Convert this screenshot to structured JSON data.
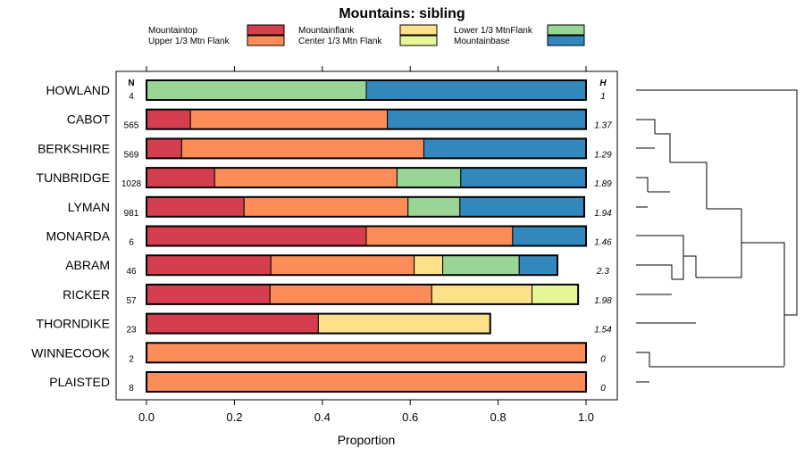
{
  "chart_data": {
    "type": "bar",
    "orientation": "horizontal",
    "stacked": true,
    "title": "Mountains: sibling",
    "xlabel": "Proportion",
    "ylabel": "",
    "xlim": [
      0,
      1
    ],
    "x_ticks": [
      "0.0",
      "0.2",
      "0.4",
      "0.6",
      "0.8",
      "1.0"
    ],
    "n_header": "N",
    "h_header": "H",
    "legend_position": "top",
    "categories": [
      "HOWLAND",
      "CABOT",
      "BERKSHIRE",
      "TUNBRIDGE",
      "LYMAN",
      "MONARDA",
      "ABRAM",
      "RICKER",
      "THORNDIKE",
      "WINNECOOK",
      "PLAISTED"
    ],
    "n_values": [
      "4",
      "565",
      "569",
      "1028",
      "981",
      "6",
      "46",
      "57",
      "23",
      "2",
      "8"
    ],
    "h_values": [
      "1",
      "1.37",
      "1.29",
      "1.89",
      "1.94",
      "1.46",
      "2.3",
      "1.98",
      "1.54",
      "0",
      "0"
    ],
    "series": [
      {
        "name": "Mountaintop",
        "color": "#d53e4f",
        "values": [
          0,
          0.1,
          0.08,
          0.155,
          0.222,
          0.5,
          0.283,
          0.281,
          0.391,
          0,
          0
        ]
      },
      {
        "name": "Upper 1/3 Mtn Flank",
        "color": "#fc8d59",
        "values": [
          0,
          0.448,
          0.551,
          0.415,
          0.373,
          0.333,
          0.326,
          0.368,
          0,
          1,
          1
        ]
      },
      {
        "name": "Mountainflank",
        "color": "#fee08b",
        "values": [
          0,
          0,
          0,
          0,
          0,
          0,
          0.065,
          0.228,
          0.391,
          0,
          0
        ]
      },
      {
        "name": "Center 1/3 Mtn Flank",
        "color": "#e6f598",
        "values": [
          0,
          0,
          0,
          0,
          0,
          0,
          0,
          0.105,
          0,
          0,
          0
        ]
      },
      {
        "name": "Lower 1/3 MtnFlank",
        "color": "#99d594",
        "values": [
          0.5,
          0,
          0,
          0.145,
          0.118,
          0,
          0.174,
          0,
          0,
          0,
          0
        ]
      },
      {
        "name": "Mountainbase",
        "color": "#3288bd",
        "values": [
          0.5,
          0.452,
          0.369,
          0.285,
          0.283,
          0.167,
          0.087,
          0,
          0,
          0,
          0
        ]
      }
    ],
    "dendrogram": "hierarchical clustering of rows (right side)"
  }
}
